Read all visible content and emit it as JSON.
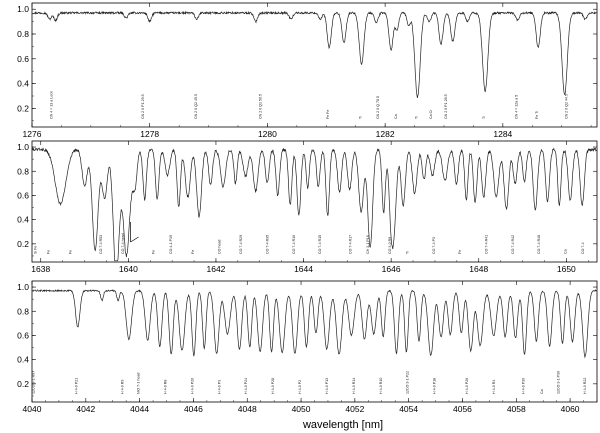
{
  "chart_data": [
    {
      "type": "line",
      "xlim": [
        1276,
        1285.6
      ],
      "ylim": [
        0.05,
        1.05
      ],
      "x_ticks": [
        1276,
        1278,
        1280,
        1282,
        1284
      ],
      "y_ticks": [
        0.2,
        0.4,
        0.6,
        0.8,
        1.0
      ],
      "x_tick_labels": [
        "1276",
        "1278",
        "1280",
        "1282",
        "1284"
      ],
      "y_tick_labels": [
        "0.2",
        "0.4",
        "0.6",
        "0.8",
        "1.0"
      ],
      "base": 0.97,
      "noise": 0.008,
      "lines": [
        [
          1276.3,
          0.05,
          0.03
        ],
        [
          1276.4,
          0.06,
          0.03
        ],
        [
          1277.6,
          0.04,
          0.03
        ],
        [
          1278.0,
          0.07,
          0.03
        ],
        [
          1278.8,
          0.05,
          0.03
        ],
        [
          1279.8,
          0.07,
          0.03
        ],
        [
          1280.4,
          0.05,
          0.03
        ],
        [
          1280.9,
          0.05,
          0.03
        ],
        [
          1281.05,
          0.28,
          0.035
        ],
        [
          1281.3,
          0.24,
          0.035
        ],
        [
          1281.6,
          0.41,
          0.04
        ],
        [
          1281.85,
          0.08,
          0.03
        ],
        [
          1282.1,
          0.3,
          0.035
        ],
        [
          1282.2,
          0.14,
          0.03
        ],
        [
          1282.4,
          0.1,
          0.03
        ],
        [
          1282.55,
          0.68,
          0.045
        ],
        [
          1282.75,
          0.07,
          0.03
        ],
        [
          1282.95,
          0.25,
          0.035
        ],
        [
          1283.15,
          0.23,
          0.035
        ],
        [
          1283.4,
          0.07,
          0.03
        ],
        [
          1283.7,
          0.63,
          0.045
        ],
        [
          1284.25,
          0.06,
          0.03
        ],
        [
          1284.6,
          0.28,
          0.035
        ],
        [
          1285.05,
          0.66,
          0.045
        ],
        [
          1285.4,
          0.05,
          0.03
        ]
      ],
      "annotations": [
        {
          "x": 1276.35,
          "text": "CN 4 = 13 a Lock"
        },
        {
          "x": 1277.9,
          "text": "CN 2 0 P1 29.5"
        },
        {
          "x": 1278.8,
          "text": "CN 2 0 Q2 45.5"
        },
        {
          "x": 1279.9,
          "text": "CN 2 0 Q1 50.5"
        },
        {
          "x": 1281.05,
          "text": "Fe Fe"
        },
        {
          "x": 1281.6,
          "text": "Ti"
        },
        {
          "x": 1281.9,
          "text": "CN 2 0 Q 78.5"
        },
        {
          "x": 1282.2,
          "text": "Ca"
        },
        {
          "x": 1282.55,
          "text": "Ti"
        },
        {
          "x": 1282.8,
          "text": "Ca Cr"
        },
        {
          "x": 1283.05,
          "text": "CN 2 0 P1 28.5"
        },
        {
          "x": 1283.7,
          "text": "Ti"
        },
        {
          "x": 1284.25,
          "text": "CN 4 = 12a a 5"
        },
        {
          "x": 1284.6,
          "text": "Fe Ti"
        },
        {
          "x": 1285.1,
          "text": "CN 2 0 Q2 44.5"
        }
      ]
    },
    {
      "type": "line",
      "xlim": [
        1637.8,
        1650.7
      ],
      "ylim": [
        0.05,
        1.05
      ],
      "x_ticks": [
        1638,
        1640,
        1642,
        1644,
        1646,
        1648,
        1650
      ],
      "y_ticks": [
        0.2,
        0.4,
        0.6,
        0.8,
        1.0
      ],
      "x_tick_labels": [
        "1638",
        "1640",
        "1642",
        "1644",
        "1646",
        "1648",
        "1650"
      ],
      "y_tick_labels": [
        "0.2",
        "0.4",
        "0.6",
        "0.8",
        "1.0"
      ],
      "base": 0.98,
      "noise": 0.012,
      "dense": {
        "start": 1639.0,
        "end": 1650.5,
        "spacing": 0.24,
        "dmin": 0.2,
        "dmax": 0.55,
        "width": 0.045
      },
      "lines": [
        [
          1638.45,
          0.45,
          0.12
        ],
        [
          1639.25,
          0.5,
          0.08
        ],
        [
          1639.75,
          0.55,
          0.09
        ],
        [
          1640.0,
          0.5,
          0.08
        ],
        [
          1645.5,
          0.5,
          0.05
        ],
        [
          1646.0,
          0.52,
          0.05
        ]
      ],
      "annotations": [
        {
          "x": 1637.9,
          "text": "Si Fe"
        },
        {
          "x": 1638.2,
          "text": "Fe"
        },
        {
          "x": 1638.7,
          "text": "Fe"
        },
        {
          "x": 1639.4,
          "text": "CO 7-4 R53"
        },
        {
          "x": 1639.9,
          "text": "CO 7-4 head"
        },
        {
          "x": 1640.6,
          "text": "Fe"
        },
        {
          "x": 1641.0,
          "text": "CO 4-1 P19"
        },
        {
          "x": 1641.5,
          "text": "Fe"
        },
        {
          "x": 1642.1,
          "text": "CO head"
        },
        {
          "x": 1642.6,
          "text": "CO 7-4 R29"
        },
        {
          "x": 1643.2,
          "text": "CO 7-4 R35"
        },
        {
          "x": 1643.8,
          "text": "CO 7-4 R10"
        },
        {
          "x": 1644.4,
          "text": "CO 7-4 R15"
        },
        {
          "x": 1645.1,
          "text": "CO 7-4 R17"
        },
        {
          "x": 1645.5,
          "text": "CH 3-1 P18"
        },
        {
          "x": 1646.0,
          "text": "CO 3-0 R9"
        },
        {
          "x": 1646.4,
          "text": "Ti"
        },
        {
          "x": 1647.0,
          "text": "CO 7-4 P3"
        },
        {
          "x": 1647.6,
          "text": "Fe"
        },
        {
          "x": 1648.2,
          "text": "CO 7-4 R41"
        },
        {
          "x": 1648.8,
          "text": "CO 7-4 R42"
        },
        {
          "x": 1649.4,
          "text": "CO 7-4 R48"
        },
        {
          "x": 1650.0,
          "text": "Ca"
        },
        {
          "x": 1650.4,
          "text": "CO 7-4"
        }
      ],
      "band_head": {
        "x": 1640.05,
        "text": "CO 7-4 head"
      }
    },
    {
      "type": "line",
      "xlim": [
        4040,
        4061
      ],
      "ylim": [
        0.05,
        1.05
      ],
      "x_ticks": [
        4040,
        4042,
        4044,
        4046,
        4048,
        4050,
        4052,
        4054,
        4056,
        4058,
        4060
      ],
      "y_ticks": [
        0.2,
        0.4,
        0.6,
        0.8,
        1.0
      ],
      "x_tick_labels": [
        "4040",
        "4042",
        "4044",
        "4046",
        "4048",
        "4050",
        "4052",
        "4054",
        "4056",
        "4058",
        "4060"
      ],
      "y_tick_labels": [
        "0.2",
        "0.4",
        "0.6",
        "0.8",
        "1.0"
      ],
      "base": 0.97,
      "noise": 0.006,
      "dense": {
        "start": 4044.3,
        "end": 4060.6,
        "spacing": 0.42,
        "dmin": 0.35,
        "dmax": 0.55,
        "width": 0.08
      },
      "lines": [
        [
          4041.7,
          0.3,
          0.08
        ],
        [
          4042.6,
          0.08,
          0.05
        ],
        [
          4043.2,
          0.08,
          0.05
        ],
        [
          4043.6,
          0.4,
          0.1
        ]
      ],
      "annotations": [
        {
          "x": 4040.1,
          "text": "12CO 3-1 R97"
        },
        {
          "x": 4041.7,
          "text": "H 4-0 P21"
        },
        {
          "x": 4043.4,
          "text": "H 4-0 R9"
        },
        {
          "x": 4044.0,
          "text": "NiO 7-1 head"
        },
        {
          "x": 4045.0,
          "text": "H 4-0 R8"
        },
        {
          "x": 4046.0,
          "text": "H 4-0 P26"
        },
        {
          "x": 4047.0,
          "text": "H 4-0 P3"
        },
        {
          "x": 4048.0,
          "text": "H 4-0 P24"
        },
        {
          "x": 4049.0,
          "text": "H 4-0 P28"
        },
        {
          "x": 4050.0,
          "text": "H 4-0 P2"
        },
        {
          "x": 4051.0,
          "text": "H 4-0 P13"
        },
        {
          "x": 4052.0,
          "text": "H 4-0 R14"
        },
        {
          "x": 4053.0,
          "text": "H 4-0 R10"
        },
        {
          "x": 4054.0,
          "text": "12CO 3-1 P22"
        },
        {
          "x": 4055.0,
          "text": "H 4-0 P18"
        },
        {
          "x": 4056.2,
          "text": "H 4-0 P26"
        },
        {
          "x": 4057.2,
          "text": "H 4-0 R4"
        },
        {
          "x": 4058.3,
          "text": "H 4-0 P30"
        },
        {
          "x": 4059.0,
          "text": "Ca"
        },
        {
          "x": 4059.6,
          "text": "12CO 3-1 P30"
        },
        {
          "x": 4060.6,
          "text": "H 4-0 R22"
        }
      ]
    }
  ],
  "xlabel": "wavelength [nm]"
}
